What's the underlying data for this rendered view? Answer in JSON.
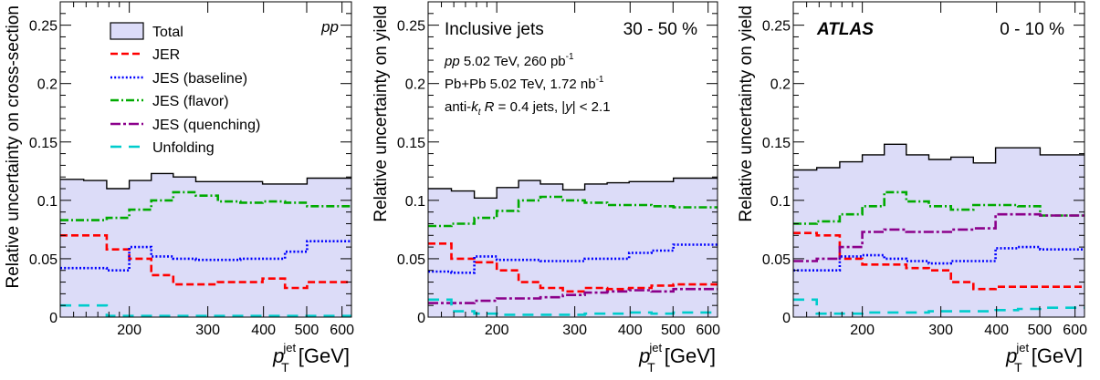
{
  "colors": {
    "total_fill": "#dcdcf8",
    "total_line": "#000000",
    "jer": "#ff0000",
    "jes_baseline": "#0000ff",
    "jes_flavor": "#00aa00",
    "jes_quenching": "#8b008b",
    "unfolding": "#00cccc"
  },
  "shared": {
    "x_unit": "[GeV]",
    "x_symbol_main": "p",
    "x_symbol_sup": "jet",
    "x_symbol_sub": "T"
  },
  "legend": {
    "total": "Total",
    "jer": "JER",
    "jes_baseline": "JES (baseline)",
    "jes_flavor": "JES (flavor)",
    "jes_quenching": "JES (quenching)",
    "unfolding": "Unfolding"
  },
  "chart_data": [
    {
      "type": "line",
      "panel_label": "pp",
      "ylabel": "Relative uncertainty on cross-section",
      "xscale": "log",
      "xlim": [
        140,
        630
      ],
      "ylim": [
        0,
        0.27
      ],
      "xticks": [
        200,
        300,
        400,
        500,
        600
      ],
      "yticks": [
        0,
        0.05,
        0.1,
        0.15,
        0.2,
        0.25
      ],
      "ytick_labels": [
        "0",
        "0.05",
        "0.1",
        "0.15",
        "0.2",
        "0.25"
      ],
      "bin_edges": [
        140,
        158,
        178,
        200,
        224,
        251,
        282,
        316,
        355,
        398,
        447,
        501,
        562,
        630
      ],
      "series": [
        {
          "name": "Total",
          "values": [
            0.118,
            0.117,
            0.11,
            0.117,
            0.123,
            0.12,
            0.116,
            0.116,
            0.116,
            0.114,
            0.114,
            0.119,
            0.119
          ]
        },
        {
          "name": "JER",
          "values": [
            0.07,
            0.07,
            0.058,
            0.05,
            0.036,
            0.028,
            0.028,
            0.03,
            0.03,
            0.033,
            0.025,
            0.03,
            0.03
          ]
        },
        {
          "name": "JES (baseline)",
          "values": [
            0.042,
            0.042,
            0.04,
            0.06,
            0.052,
            0.05,
            0.049,
            0.049,
            0.05,
            0.05,
            0.056,
            0.065,
            0.065
          ]
        },
        {
          "name": "JES (flavor)",
          "values": [
            0.083,
            0.083,
            0.085,
            0.092,
            0.1,
            0.107,
            0.104,
            0.099,
            0.098,
            0.099,
            0.098,
            0.095,
            0.095
          ]
        },
        {
          "name": "Unfolding",
          "values": [
            0.01,
            0.01,
            0.001,
            0.001,
            0.001,
            0.001,
            0.001,
            0.001,
            0.001,
            0.001,
            0.001,
            0.001,
            0.001
          ]
        }
      ]
    },
    {
      "type": "line",
      "title": "Inclusive jets",
      "centrality": "30 - 50 %",
      "info_lines": [
        {
          "italic": "pp",
          "text": " 5.02 TeV, 260 pb",
          "sup": "-1"
        },
        {
          "italic": "",
          "text": "Pb+Pb 5.02 TeV, 1.72 nb",
          "sup": "-1"
        },
        {
          "italic": "",
          "text": "anti-k_t R = 0.4 jets, |y| < 2.1",
          "sup": ""
        }
      ],
      "ylabel": "Relative uncertainty on yield",
      "xscale": "log",
      "xlim": [
        140,
        630
      ],
      "ylim": [
        0,
        0.27
      ],
      "xticks": [
        200,
        300,
        400,
        500,
        600
      ],
      "yticks": [
        0,
        0.05,
        0.1,
        0.15,
        0.2,
        0.25
      ],
      "ytick_labels": [
        "0",
        "0.05",
        "0.1",
        "0.15",
        "0.2",
        "0.25"
      ],
      "bin_edges": [
        140,
        158,
        178,
        200,
        224,
        251,
        282,
        316,
        355,
        398,
        447,
        501,
        562,
        630
      ],
      "series": [
        {
          "name": "Total",
          "values": [
            0.11,
            0.108,
            0.102,
            0.111,
            0.117,
            0.114,
            0.109,
            0.114,
            0.115,
            0.116,
            0.116,
            0.119,
            0.119
          ]
        },
        {
          "name": "JER",
          "values": [
            0.063,
            0.05,
            0.047,
            0.04,
            0.03,
            0.025,
            0.022,
            0.025,
            0.024,
            0.025,
            0.027,
            0.028,
            0.028
          ]
        },
        {
          "name": "JES (baseline)",
          "values": [
            0.039,
            0.038,
            0.052,
            0.049,
            0.049,
            0.048,
            0.048,
            0.05,
            0.05,
            0.055,
            0.057,
            0.062,
            0.062
          ]
        },
        {
          "name": "JES (flavor)",
          "values": [
            0.078,
            0.08,
            0.085,
            0.091,
            0.1,
            0.103,
            0.1,
            0.098,
            0.096,
            0.096,
            0.095,
            0.094,
            0.094
          ]
        },
        {
          "name": "JES (quenching)",
          "values": [
            0.012,
            0.012,
            0.014,
            0.016,
            0.016,
            0.017,
            0.019,
            0.021,
            0.022,
            0.023,
            0.022,
            0.024,
            0.024
          ]
        },
        {
          "name": "Unfolding",
          "values": [
            0.015,
            0.005,
            0.003,
            0.002,
            0.002,
            0.002,
            0.002,
            0.003,
            0.003,
            0.004,
            0.003,
            0.004,
            0.004
          ]
        }
      ]
    },
    {
      "type": "line",
      "experiment": "ATLAS",
      "centrality": "0 - 10 %",
      "ylabel": "Relative uncertainty on yield",
      "xscale": "log",
      "xlim": [
        140,
        630
      ],
      "ylim": [
        0,
        0.27
      ],
      "xticks": [
        200,
        300,
        400,
        500,
        600
      ],
      "yticks": [
        0,
        0.05,
        0.1,
        0.15,
        0.2,
        0.25
      ],
      "ytick_labels": [
        "0",
        "0.05",
        "0.1",
        "0.15",
        "0.2",
        "0.25"
      ],
      "bin_edges": [
        140,
        158,
        178,
        200,
        224,
        251,
        282,
        316,
        355,
        398,
        447,
        501,
        562,
        630
      ],
      "series": [
        {
          "name": "Total",
          "values": [
            0.126,
            0.128,
            0.133,
            0.139,
            0.148,
            0.139,
            0.135,
            0.137,
            0.132,
            0.145,
            0.145,
            0.139,
            0.139
          ]
        },
        {
          "name": "JER",
          "values": [
            0.072,
            0.07,
            0.05,
            0.045,
            0.045,
            0.042,
            0.04,
            0.03,
            0.024,
            0.026,
            0.026,
            0.026,
            0.026
          ]
        },
        {
          "name": "JES (baseline)",
          "values": [
            0.04,
            0.04,
            0.052,
            0.053,
            0.05,
            0.048,
            0.046,
            0.048,
            0.048,
            0.059,
            0.06,
            0.058,
            0.058
          ]
        },
        {
          "name": "JES (flavor)",
          "values": [
            0.08,
            0.082,
            0.088,
            0.095,
            0.107,
            0.099,
            0.095,
            0.092,
            0.096,
            0.096,
            0.095,
            0.087,
            0.087
          ]
        },
        {
          "name": "JES (quenching)",
          "values": [
            0.048,
            0.05,
            0.06,
            0.073,
            0.075,
            0.073,
            0.073,
            0.075,
            0.076,
            0.088,
            0.088,
            0.087,
            0.087
          ]
        },
        {
          "name": "Unfolding",
          "values": [
            0.015,
            0.003,
            0.003,
            0.004,
            0.004,
            0.004,
            0.005,
            0.005,
            0.005,
            0.006,
            0.007,
            0.008,
            0.008
          ]
        }
      ]
    }
  ]
}
